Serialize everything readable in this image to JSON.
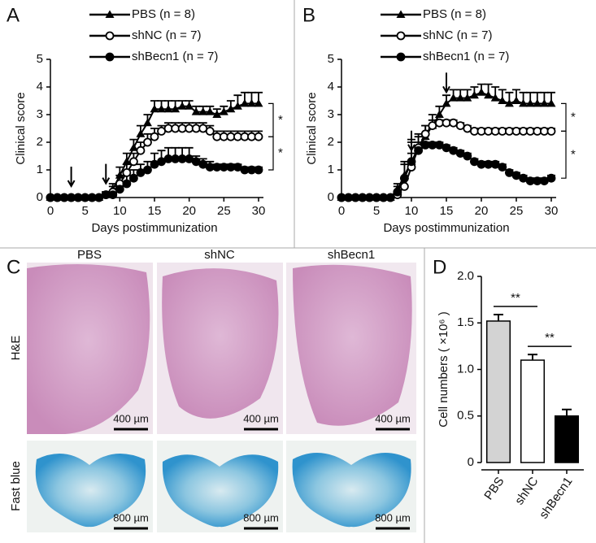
{
  "panel_labels": [
    "A",
    "B",
    "C",
    "D"
  ],
  "chart_data": [
    {
      "type": "line",
      "xlabel": "Days postimmunization",
      "ylabel": "Clinical score",
      "x": [
        0,
        1,
        2,
        3,
        4,
        5,
        6,
        7,
        8,
        9,
        10,
        11,
        12,
        13,
        14,
        15,
        16,
        17,
        18,
        19,
        20,
        21,
        22,
        23,
        24,
        25,
        26,
        27,
        28,
        29,
        30
      ],
      "xlim": [
        0,
        30
      ],
      "ylim": [
        0,
        5
      ],
      "xticks": [
        0,
        5,
        10,
        15,
        20,
        25,
        30
      ],
      "yticks": [
        0,
        1,
        2,
        3,
        4,
        5
      ],
      "series": [
        {
          "name": "PBS (n = 8)",
          "color": "#000000",
          "marker": "triangle",
          "values": [
            0,
            0,
            0,
            0,
            0,
            0,
            0,
            0,
            0.1,
            0.3,
            0.8,
            1.3,
            1.8,
            2.3,
            2.7,
            3.2,
            3.2,
            3.2,
            3.2,
            3.3,
            3.3,
            3.1,
            3.1,
            3.1,
            3.0,
            3.1,
            3.2,
            3.3,
            3.4,
            3.4,
            3.4
          ],
          "errors": [
            0,
            0,
            0,
            0,
            0,
            0,
            0,
            0,
            0.1,
            0.2,
            0.3,
            0.3,
            0.3,
            0.3,
            0.3,
            0.3,
            0.3,
            0.3,
            0.3,
            0.2,
            0.2,
            0.2,
            0.2,
            0.2,
            0.2,
            0.2,
            0.3,
            0.4,
            0.4,
            0.4,
            0.4
          ]
        },
        {
          "name": "shNC (n = 7)",
          "color": "#000000",
          "marker": "circle-open",
          "values": [
            0,
            0,
            0,
            0,
            0,
            0,
            0,
            0,
            0.1,
            0.2,
            0.5,
            0.9,
            1.3,
            1.7,
            2.0,
            2.2,
            2.4,
            2.5,
            2.5,
            2.5,
            2.5,
            2.5,
            2.5,
            2.4,
            2.2,
            2.2,
            2.2,
            2.2,
            2.2,
            2.2,
            2.2
          ],
          "errors": [
            0,
            0,
            0,
            0,
            0,
            0,
            0,
            0,
            0.1,
            0.2,
            0.3,
            0.3,
            0.3,
            0.3,
            0.3,
            0.3,
            0.2,
            0.2,
            0.2,
            0.2,
            0.2,
            0.2,
            0.2,
            0.2,
            0.2,
            0.2,
            0.2,
            0.2,
            0.2,
            0.2,
            0.2
          ]
        },
        {
          "name": "shBecn1 (n = 7)",
          "color": "#000000",
          "marker": "circle",
          "values": [
            0,
            0,
            0,
            0,
            0,
            0,
            0,
            0,
            0.1,
            0.1,
            0.3,
            0.5,
            0.7,
            0.9,
            1.0,
            1.2,
            1.3,
            1.4,
            1.4,
            1.4,
            1.4,
            1.3,
            1.2,
            1.1,
            1.1,
            1.1,
            1.1,
            1.1,
            1.0,
            1.0,
            1.0
          ],
          "errors": [
            0,
            0,
            0,
            0,
            0,
            0,
            0,
            0,
            0.1,
            0.1,
            0.2,
            0.3,
            0.3,
            0.3,
            0.3,
            0.4,
            0.4,
            0.4,
            0.4,
            0.4,
            0.4,
            0.2,
            0.2,
            0.2,
            0.1,
            0.1,
            0.1,
            0.1,
            0.1,
            0.1,
            0.1
          ]
        }
      ],
      "arrow_days": [
        3,
        8
      ],
      "annotations": [
        "*",
        "*"
      ]
    },
    {
      "type": "line",
      "xlabel": "Days postimmunization",
      "ylabel": "Clinical score",
      "x": [
        0,
        1,
        2,
        3,
        4,
        5,
        6,
        7,
        8,
        9,
        10,
        11,
        12,
        13,
        14,
        15,
        16,
        17,
        18,
        19,
        20,
        21,
        22,
        23,
        24,
        25,
        26,
        27,
        28,
        29,
        30
      ],
      "xlim": [
        0,
        30
      ],
      "ylim": [
        0,
        5
      ],
      "xticks": [
        0,
        5,
        10,
        15,
        20,
        25,
        30
      ],
      "yticks": [
        0,
        1,
        2,
        3,
        4,
        5
      ],
      "series": [
        {
          "name": "PBS (n = 8)",
          "color": "#000000",
          "marker": "triangle",
          "values": [
            0,
            0,
            0,
            0,
            0,
            0,
            0,
            0,
            0.3,
            0.8,
            1.3,
            1.8,
            2.2,
            2.6,
            3.0,
            3.4,
            3.6,
            3.6,
            3.6,
            3.7,
            3.8,
            3.7,
            3.6,
            3.5,
            3.4,
            3.5,
            3.4,
            3.4,
            3.4,
            3.4,
            3.4
          ],
          "errors": [
            0,
            0,
            0,
            0,
            0,
            0,
            0,
            0,
            0.2,
            0.5,
            0.8,
            0.5,
            0.4,
            0.4,
            0.3,
            0.3,
            0.3,
            0.3,
            0.3,
            0.3,
            0.3,
            0.4,
            0.4,
            0.4,
            0.4,
            0.4,
            0.4,
            0.4,
            0.4,
            0.4,
            0.4
          ]
        },
        {
          "name": "shNC (n = 7)",
          "color": "#000000",
          "marker": "circle-open",
          "values": [
            0,
            0,
            0,
            0,
            0,
            0,
            0,
            0,
            0.1,
            0.4,
            1.1,
            1.8,
            2.3,
            2.6,
            2.7,
            2.7,
            2.7,
            2.6,
            2.5,
            2.4,
            2.4,
            2.4,
            2.4,
            2.4,
            2.4,
            2.4,
            2.4,
            2.4,
            2.4,
            2.4,
            2.4
          ],
          "errors": [
            0,
            0,
            0,
            0,
            0,
            0,
            0,
            0,
            0.1,
            0.3,
            0.5,
            0.4,
            0.3,
            0.2,
            0.1,
            0.1,
            0.1,
            0.1,
            0.1,
            0.1,
            0.1,
            0.1,
            0.1,
            0.1,
            0.1,
            0.1,
            0.1,
            0.1,
            0.1,
            0.1,
            0.1
          ]
        },
        {
          "name": "shBecn1 (n = 7)",
          "color": "#000000",
          "marker": "circle",
          "values": [
            0,
            0,
            0,
            0,
            0,
            0,
            0,
            0,
            0.2,
            0.7,
            1.3,
            1.7,
            1.9,
            1.9,
            1.9,
            1.8,
            1.7,
            1.6,
            1.5,
            1.3,
            1.2,
            1.2,
            1.2,
            1.1,
            0.9,
            0.8,
            0.7,
            0.6,
            0.6,
            0.6,
            0.7
          ],
          "errors": [
            0,
            0,
            0,
            0,
            0,
            0,
            0,
            0,
            0.2,
            0.5,
            0.7,
            0.3,
            0.1,
            0.1,
            0.1,
            0.1,
            0.1,
            0.1,
            0.1,
            0.1,
            0.1,
            0.1,
            0.1,
            0.1,
            0.1,
            0.1,
            0.1,
            0.1,
            0.1,
            0.1,
            0.1
          ]
        }
      ],
      "arrow_days": [
        10,
        15
      ],
      "annotations": [
        "*",
        "*"
      ]
    },
    {
      "type": "bar",
      "ylabel": "Cell numbers ( ×10⁶ )",
      "categories": [
        "PBS",
        "shNC",
        "shBecn1"
      ],
      "values": [
        1.52,
        1.1,
        0.5
      ],
      "errors": [
        0.07,
        0.06,
        0.07
      ],
      "colors": [
        "#d3d3d3",
        "#ffffff",
        "#000000"
      ],
      "ylim": [
        0,
        2
      ],
      "yticks": [
        0,
        0.5,
        {
          "value": 1,
          "label": "1.0"
        },
        1.5,
        {
          "value": 2,
          "label": "2.0"
        }
      ],
      "annotations": [
        "**",
        "**"
      ]
    }
  ],
  "histology": {
    "columns": [
      "PBS",
      "shNC",
      "shBecn1"
    ],
    "rows": [
      "H&E",
      "Fast blue"
    ],
    "scale_bars": [
      "400 µm",
      "400 µm",
      "400 µm",
      "800 µm",
      "800 µm",
      "800 µm"
    ]
  }
}
